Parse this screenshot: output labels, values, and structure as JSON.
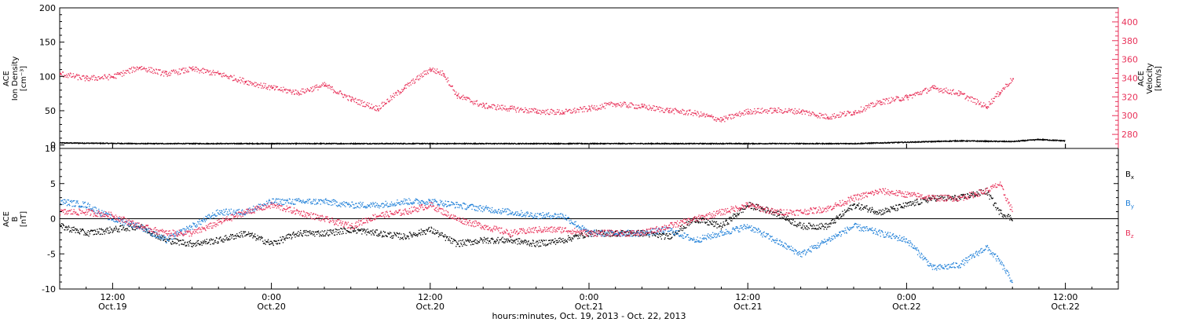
{
  "colors": {
    "density": "#000000",
    "velocity": "#e8325a",
    "bx": "#000000",
    "by": "#1e7fd8",
    "bz": "#e8325a"
  },
  "figure": {
    "x_caption": "hours:minutes, Oct. 19, 2013 - Oct. 22, 2013",
    "x_ticks": [
      {
        "time": "12:00",
        "date": "Oct.19",
        "hour": 12
      },
      {
        "time": "0:00",
        "date": "Oct.20",
        "hour": 24
      },
      {
        "time": "12:00",
        "date": "Oct.20",
        "hour": 36
      },
      {
        "time": "0:00",
        "date": "Oct.21",
        "hour": 48
      },
      {
        "time": "12:00",
        "date": "Oct.21",
        "hour": 60
      },
      {
        "time": "0:00",
        "date": "Oct.22",
        "hour": 72
      },
      {
        "time": "12:00",
        "date": "Oct.22",
        "hour": 84
      }
    ]
  },
  "chart_data": [
    {
      "type": "scatter",
      "title": "",
      "ylabel": "ACE\nIon Density\n[cm⁻³]",
      "y2label": "ACE\nVelocity\n[km/s]",
      "xlim_hours": [
        8,
        88
      ],
      "ylim": [
        -5,
        200
      ],
      "y2lim": [
        265,
        415
      ],
      "yticks": [
        0,
        50,
        100,
        150,
        200
      ],
      "y2ticks": [
        280,
        300,
        320,
        340,
        360,
        380,
        400
      ],
      "grid": false,
      "series": [
        {
          "name": "",
          "axis": "left",
          "x": [
            8,
            14,
            20,
            26,
            32,
            38,
            44,
            50,
            56,
            62,
            68,
            72,
            76,
            80,
            82,
            84
          ],
          "y": [
            3,
            2,
            2,
            2,
            2,
            2,
            2,
            2,
            2,
            2,
            2,
            4,
            6,
            5,
            8,
            6
          ]
        },
        {
          "name": "",
          "axis": "right",
          "x": [
            8,
            10,
            12,
            14,
            16,
            18,
            20,
            22,
            24,
            26,
            28,
            30,
            32,
            34,
            36,
            37,
            38,
            40,
            42,
            44,
            46,
            48,
            50,
            52,
            54,
            56,
            58,
            60,
            62,
            64,
            66,
            68,
            70,
            72,
            74,
            76,
            78,
            79,
            80
          ],
          "y": [
            345,
            340,
            342,
            352,
            345,
            350,
            345,
            337,
            330,
            325,
            333,
            318,
            308,
            330,
            350,
            345,
            322,
            311,
            308,
            305,
            304,
            308,
            313,
            310,
            306,
            303,
            296,
            305,
            306,
            305,
            299,
            304,
            315,
            320,
            330,
            324,
            310,
            325,
            340
          ]
        }
      ]
    },
    {
      "type": "scatter",
      "title": "",
      "ylabel": "ACE\nB\n[nT]",
      "xlim_hours": [
        8,
        88
      ],
      "ylim": [
        -10,
        10
      ],
      "yticks": [
        -10,
        -5,
        0,
        5,
        10
      ],
      "grid": false,
      "zero_line": true,
      "legend_position": "right",
      "legend": [
        {
          "base": "B",
          "sub": "x",
          "series": "bx"
        },
        {
          "base": "B",
          "sub": "y",
          "series": "by"
        },
        {
          "base": "B",
          "sub": "z",
          "series": "bz"
        }
      ],
      "series": [
        {
          "key": "bx",
          "name": "Bx",
          "x": [
            8,
            10,
            12,
            14,
            16,
            18,
            20,
            22,
            24,
            26,
            28,
            30,
            32,
            34,
            36,
            38,
            40,
            42,
            44,
            46,
            48,
            50,
            52,
            54,
            56,
            58,
            60,
            62,
            64,
            66,
            68,
            70,
            72,
            74,
            76,
            78,
            79,
            80
          ],
          "y": [
            -1,
            -2,
            -1.5,
            -1,
            -3,
            -3.5,
            -3,
            -2,
            -3.5,
            -2,
            -2,
            -1.5,
            -2,
            -2.5,
            -1.5,
            -3.5,
            -3,
            -3,
            -3.5,
            -3,
            -2,
            -2,
            -2,
            -2.5,
            0,
            -1,
            2,
            1,
            -1,
            -1,
            2,
            1,
            2,
            3,
            3,
            4,
            1,
            0
          ]
        },
        {
          "key": "by",
          "name": "By",
          "x": [
            8,
            10,
            12,
            14,
            16,
            18,
            20,
            22,
            24,
            26,
            28,
            30,
            32,
            34,
            36,
            38,
            40,
            42,
            44,
            46,
            48,
            50,
            52,
            54,
            56,
            58,
            60,
            62,
            64,
            66,
            68,
            70,
            72,
            74,
            76,
            78,
            79,
            80
          ],
          "y": [
            2.5,
            2,
            0,
            -1,
            -3,
            -1,
            1,
            1,
            2.5,
            2.5,
            2.5,
            2,
            2,
            2.5,
            2.5,
            2,
            1.5,
            1,
            0.5,
            0.5,
            -2,
            -2,
            -2,
            -1.5,
            -3,
            -2,
            -1,
            -3,
            -5,
            -3,
            -1,
            -2,
            -3,
            -7,
            -6.5,
            -4,
            -6,
            -9
          ]
        },
        {
          "key": "bz",
          "name": "Bz",
          "x": [
            8,
            10,
            12,
            14,
            16,
            18,
            20,
            22,
            24,
            26,
            28,
            30,
            32,
            34,
            36,
            38,
            40,
            42,
            44,
            46,
            48,
            50,
            52,
            54,
            56,
            58,
            60,
            62,
            64,
            66,
            68,
            70,
            72,
            74,
            76,
            78,
            79,
            80
          ],
          "y": [
            1,
            1,
            0.5,
            -1,
            -2,
            -2,
            -0.5,
            1,
            2,
            1,
            0,
            -1,
            0.5,
            1,
            2,
            0,
            -1,
            -2,
            -1.5,
            -1.5,
            -2,
            -2,
            -2,
            -1,
            0,
            1,
            2,
            1,
            1,
            1.5,
            3,
            4,
            3.5,
            3,
            3,
            4,
            5,
            1
          ]
        }
      ]
    }
  ]
}
